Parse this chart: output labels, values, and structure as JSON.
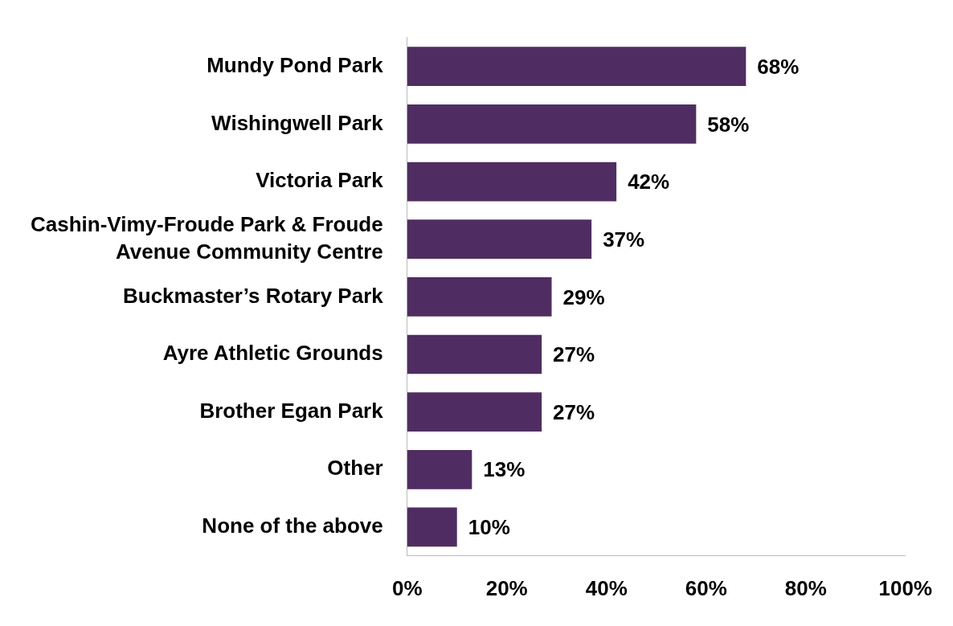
{
  "chart_data": {
    "type": "bar",
    "orientation": "horizontal",
    "categories": [
      "Mundy Pond Park",
      "Wishingwell Park",
      "Victoria Park",
      "Cashin-Vimy-Froude Park & Froude Avenue Community Centre",
      "Buckmaster’s Rotary Park",
      "Ayre Athletic Grounds",
      "Brother Egan Park",
      "Other",
      "None of the above"
    ],
    "values": [
      68,
      58,
      42,
      37,
      29,
      27,
      27,
      13,
      10
    ],
    "value_labels": [
      "68%",
      "58%",
      "42%",
      "37%",
      "29%",
      "27%",
      "27%",
      "13%",
      "10%"
    ],
    "color": "#4f2d62",
    "xlim": [
      0,
      100
    ],
    "xticks": [
      {
        "value": 0,
        "label": "0%"
      },
      {
        "value": 20,
        "label": "20%"
      },
      {
        "value": 40,
        "label": "40%"
      },
      {
        "value": 60,
        "label": "60%"
      },
      {
        "value": 80,
        "label": "80%"
      },
      {
        "value": 100,
        "label": "100%"
      }
    ],
    "grid": false,
    "legend": false
  }
}
